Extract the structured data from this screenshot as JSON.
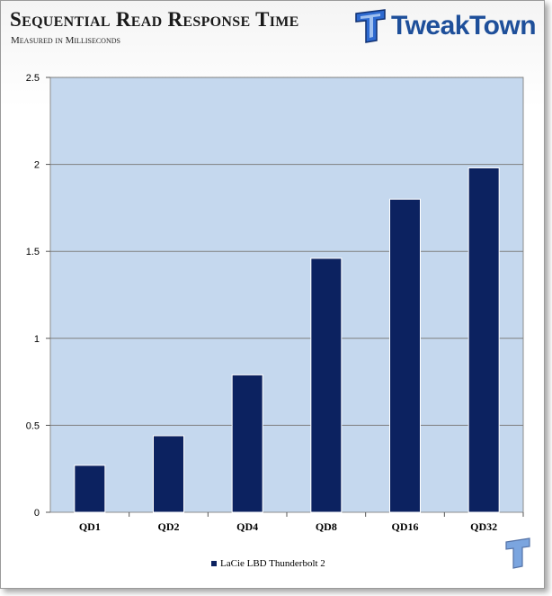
{
  "header": {
    "title": "Sequential Read Response Time",
    "subtitle": "Measured in Milliseconds",
    "logo_text": "TweakTown"
  },
  "colors": {
    "bar": "#0c2260",
    "plot_bg": "#c5d8ee",
    "grid": "#7f7f7f"
  },
  "chart_data": {
    "type": "bar",
    "categories": [
      "QD1",
      "QD2",
      "QD4",
      "QD8",
      "QD16",
      "QD32"
    ],
    "series": [
      {
        "name": "LaCie LBD Thunderbolt 2",
        "values": [
          0.27,
          0.44,
          0.79,
          1.46,
          1.8,
          1.98
        ]
      }
    ],
    "yticks": [
      "0",
      "0.5",
      "1",
      "1.5",
      "2",
      "2.5"
    ],
    "ylim": [
      0,
      2.5
    ],
    "grid": true,
    "legend": "bottom"
  }
}
